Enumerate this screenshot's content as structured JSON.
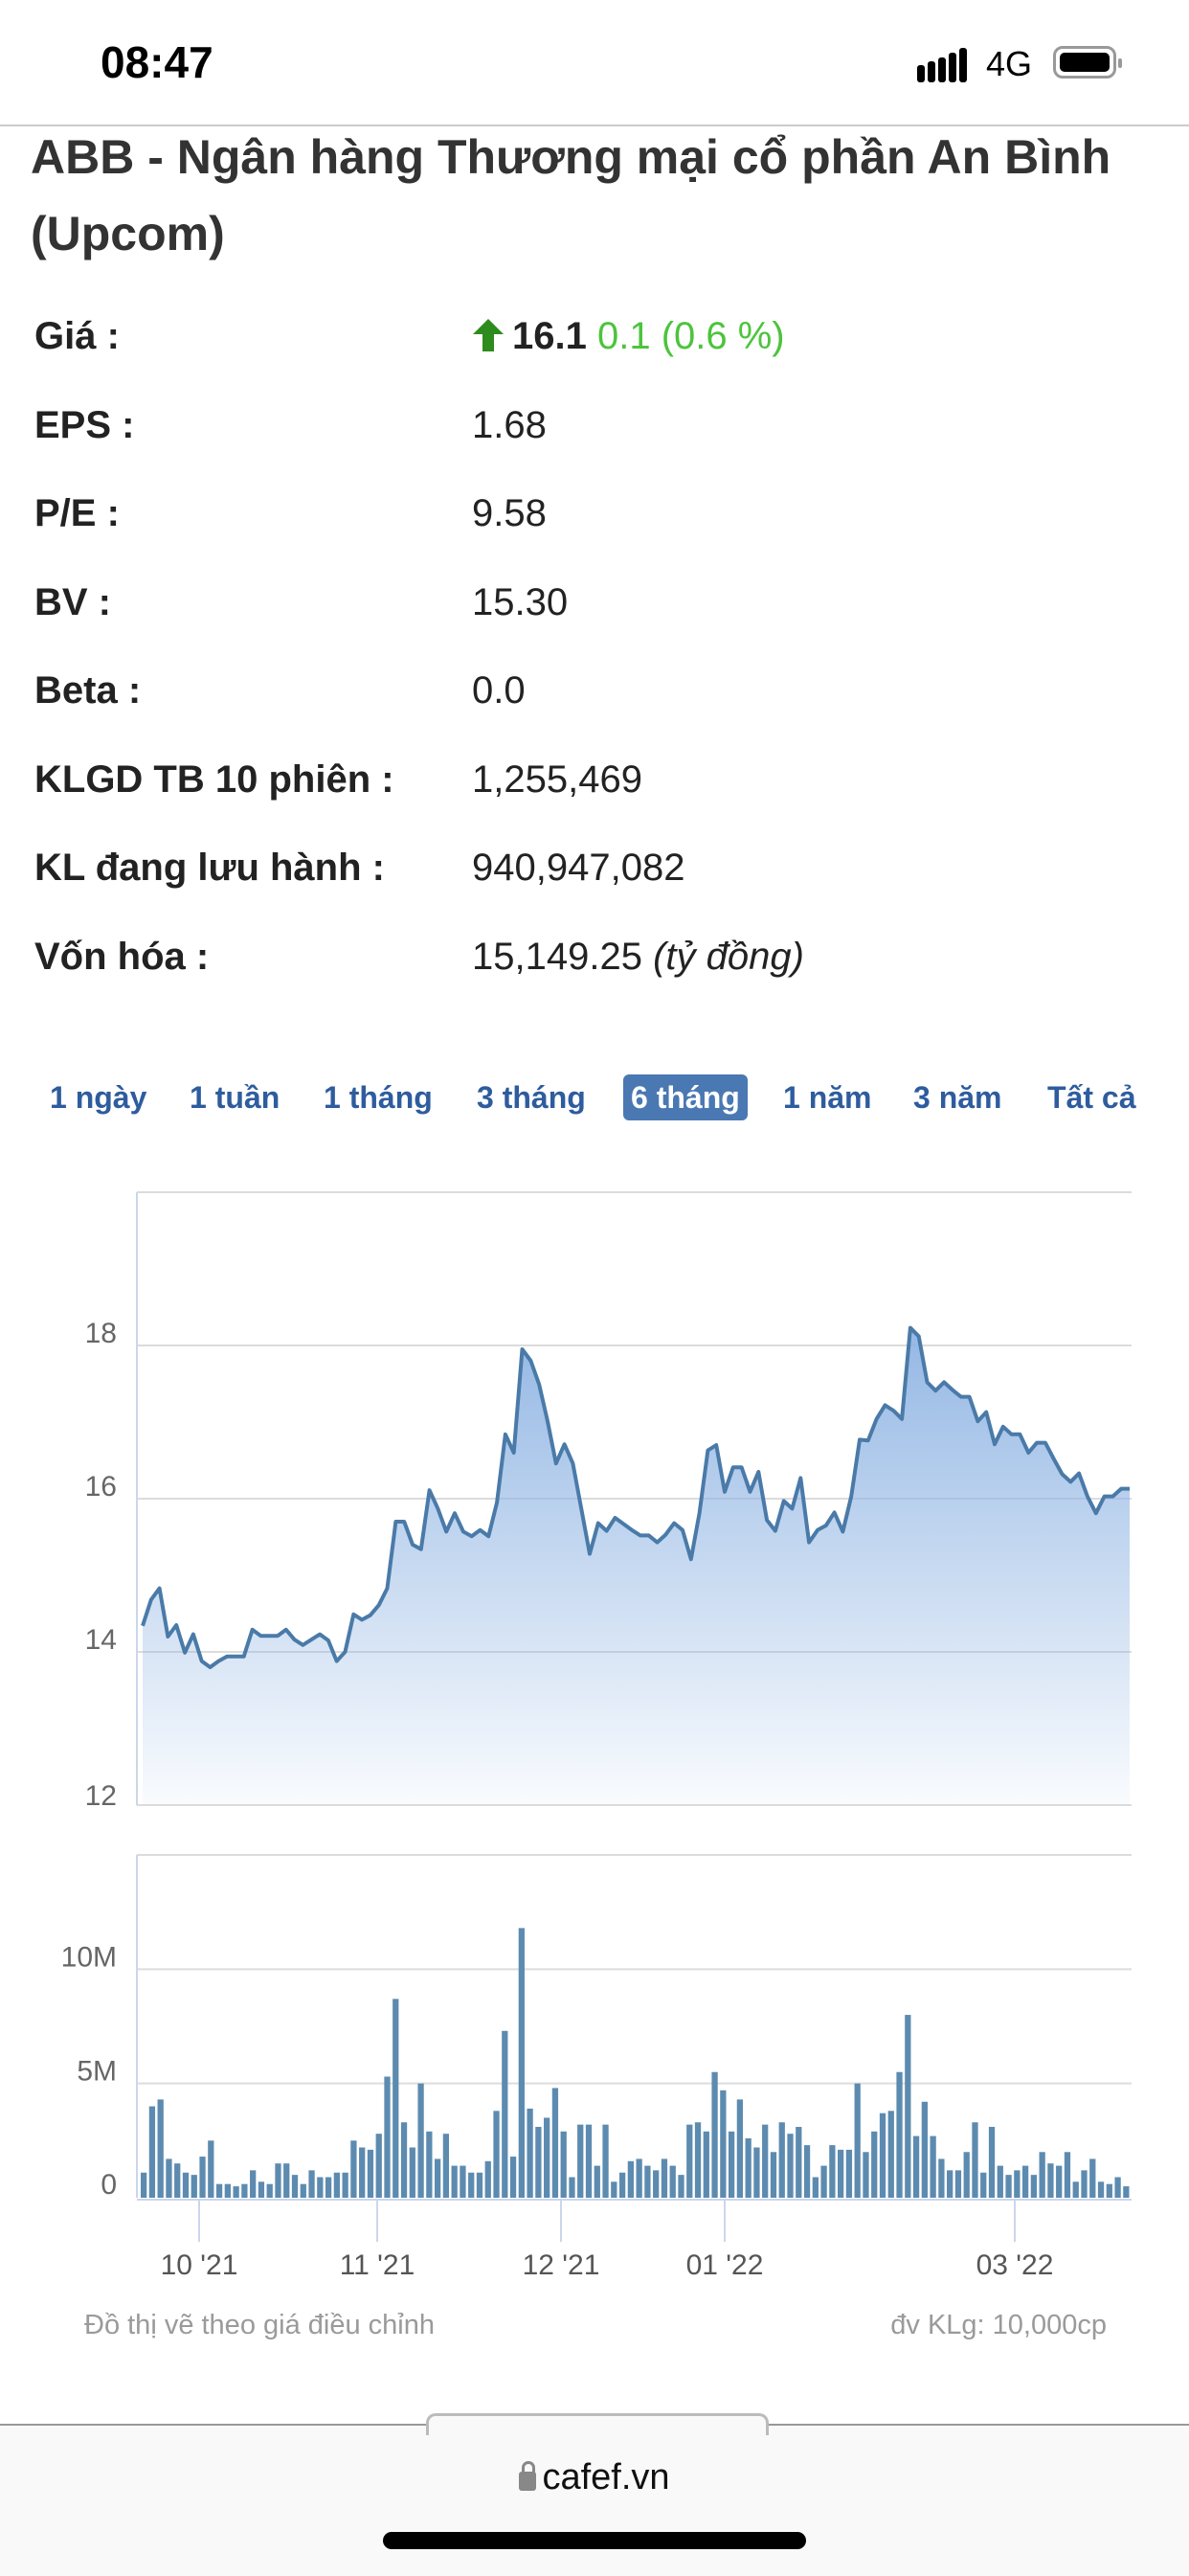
{
  "status_bar": {
    "time": "08:47",
    "network": "4G",
    "signal_icon": "cellular-signal-icon",
    "battery_icon": "battery-full-icon"
  },
  "title": "ABB - Ngân hàng Thương mại cổ phần An Bình (Upcom)",
  "stats": [
    {
      "label": "Giá :",
      "price": "16.1",
      "change": "0.1 (0.6 %)",
      "trend_icon": "arrow-up-icon",
      "trend_color": "#2e8b1e",
      "change_color": "#4cc43c"
    },
    {
      "label": "EPS :",
      "value": "1.68"
    },
    {
      "label": "P/E :",
      "value": "9.58"
    },
    {
      "label": "BV :",
      "value": "15.30"
    },
    {
      "label": "Beta :",
      "value": "0.0"
    },
    {
      "label": "KLGD TB 10 phiên :",
      "value": "1,255,469"
    },
    {
      "label": "KL đang lưu hành :",
      "value": "940,947,082"
    },
    {
      "label": "Vốn hóa :",
      "value": "15,149.25",
      "unit": "(tỷ đồng)"
    }
  ],
  "range_tabs": [
    {
      "label": "1 ngày"
    },
    {
      "label": "1 tuần"
    },
    {
      "label": "1 tháng"
    },
    {
      "label": "3 tháng"
    },
    {
      "label": "6 tháng",
      "selected": true
    },
    {
      "label": "1 năm"
    },
    {
      "label": "3 năm"
    },
    {
      "label": "Tất cả"
    }
  ],
  "chart_data": [
    {
      "type": "area",
      "ylim": [
        12,
        20
      ],
      "yticks": [
        "12",
        "14",
        "16",
        "18"
      ],
      "grid": true,
      "color": "#4a7aa8",
      "fill_color": "#8fb4e3",
      "values": [
        14.34,
        14.68,
        14.83,
        14.2,
        14.35,
        13.99,
        14.23,
        13.88,
        13.8,
        13.88,
        13.94,
        13.94,
        13.94,
        14.29,
        14.21,
        14.21,
        14.21,
        14.29,
        14.16,
        14.09,
        14.16,
        14.23,
        14.15,
        13.88,
        14.0,
        14.49,
        14.42,
        14.48,
        14.61,
        14.83,
        15.7,
        15.7,
        15.4,
        15.34,
        16.11,
        15.87,
        15.57,
        15.81,
        15.57,
        15.51,
        15.59,
        15.51,
        15.95,
        16.84,
        16.6,
        17.95,
        17.8,
        17.49,
        17.01,
        16.46,
        16.71,
        16.46,
        15.87,
        15.28,
        15.68,
        15.58,
        15.75,
        15.67,
        15.59,
        15.52,
        15.52,
        15.43,
        15.53,
        15.68,
        15.59,
        15.21,
        15.81,
        16.63,
        16.7,
        16.09,
        16.41,
        16.41,
        16.09,
        16.35,
        15.72,
        15.58,
        15.97,
        15.87,
        16.27,
        15.43,
        15.59,
        15.65,
        15.82,
        15.57,
        16.03,
        16.77,
        16.76,
        17.04,
        17.22,
        17.15,
        17.04,
        18.23,
        18.12,
        17.52,
        17.41,
        17.52,
        17.42,
        17.33,
        17.33,
        17.01,
        17.13,
        16.71,
        16.94,
        16.84,
        16.84,
        16.6,
        16.73,
        16.73,
        16.52,
        16.32,
        16.22,
        16.33,
        16.03,
        15.81,
        16.03,
        16.03,
        16.13,
        16.13
      ]
    },
    {
      "type": "bar",
      "ylim": [
        0,
        15
      ],
      "yticks": [
        "0",
        "5M",
        "10M"
      ],
      "grid": true,
      "color": "#5d8bb0",
      "xticks": [
        "10 '21",
        "11 '21",
        "12 '21",
        "01 '22",
        "03 '22"
      ],
      "values_millions": [
        1.1,
        4.0,
        4.3,
        1.7,
        1.5,
        1.1,
        1.0,
        1.8,
        2.5,
        0.6,
        0.6,
        0.5,
        0.6,
        1.2,
        0.7,
        0.6,
        1.5,
        1.5,
        1.0,
        0.6,
        1.2,
        0.9,
        0.9,
        1.1,
        1.1,
        2.5,
        2.2,
        2.1,
        2.8,
        5.3,
        8.7,
        3.3,
        2.2,
        5.0,
        2.9,
        1.7,
        2.8,
        1.4,
        1.4,
        1.1,
        1.1,
        1.6,
        3.8,
        7.3,
        1.8,
        11.8,
        3.9,
        3.1,
        3.5,
        4.8,
        2.9,
        0.9,
        3.2,
        3.2,
        1.4,
        3.2,
        0.7,
        1.1,
        1.6,
        1.7,
        1.4,
        1.2,
        1.7,
        1.4,
        1.0,
        3.2,
        3.3,
        2.9,
        5.5,
        4.7,
        2.9,
        4.3,
        2.6,
        2.2,
        3.2,
        2.0,
        3.3,
        2.8,
        3.1,
        2.3,
        0.9,
        1.4,
        2.3,
        2.1,
        2.1,
        5.0,
        2.0,
        2.9,
        3.7,
        3.8,
        5.5,
        8.0,
        2.7,
        4.2,
        2.7,
        1.7,
        1.2,
        1.2,
        2.0,
        3.3,
        1.1,
        3.1,
        1.4,
        1.0,
        1.2,
        1.4,
        1.0,
        2.0,
        1.5,
        1.4,
        2.0,
        0.7,
        1.2,
        1.7,
        0.7,
        0.6,
        0.9,
        0.5
      ]
    }
  ],
  "footnotes": {
    "left": "Đồ thị vẽ theo giá điều chỉnh",
    "right": "đv KLg: 10,000cp"
  },
  "browser": {
    "url": "cafef.vn",
    "lock_icon": "lock-icon"
  }
}
